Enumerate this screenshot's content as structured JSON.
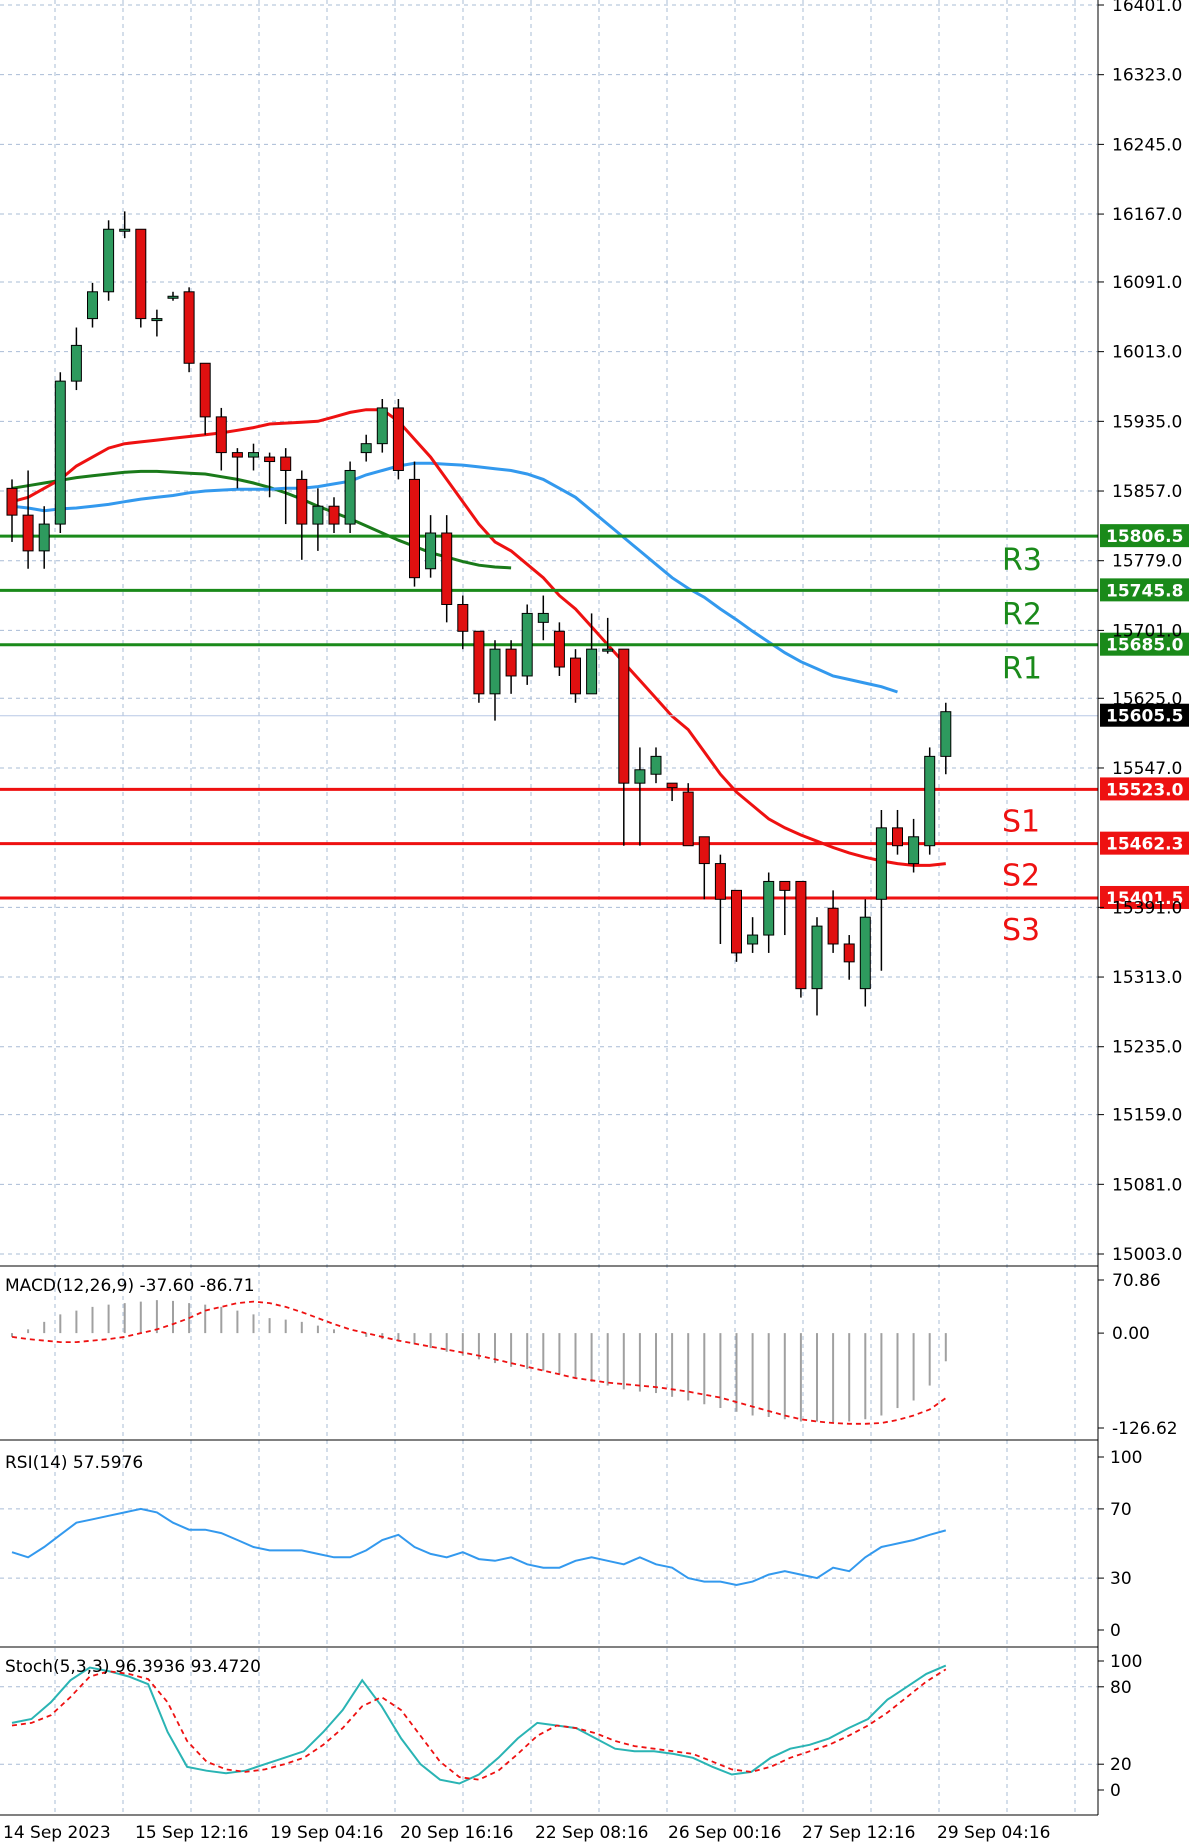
{
  "colors": {
    "bull": "#2e9a5e",
    "bear": "#e01010",
    "wick": "#000000",
    "grid": "#a9bcd6",
    "ma_fast": "#ee1111",
    "ma_mid": "#3399ee",
    "ma_slow": "#1a7a1a",
    "resistance": "#1a8a1a",
    "support": "#ee1111",
    "current": "#b8c8e6",
    "indicator_line": "#3399ee",
    "stoch_signal": "#ee1111",
    "stoch_main": "#2ab4b4",
    "macd_hist": "#a0a0a0"
  },
  "chart_data": [
    {
      "type": "candlestick",
      "ylim": [
        15003.0,
        16401.0
      ],
      "y_ticks": [
        "16401.0",
        "16323.0",
        "16245.0",
        "16167.0",
        "16091.0",
        "16013.0",
        "15935.0",
        "15857.0",
        "15779.0",
        "15701.0",
        "15625.0",
        "15547.0",
        "15391.0",
        "15313.0",
        "15235.0",
        "15159.0",
        "15081.0",
        "15003.0"
      ],
      "x_ticks": [
        "14 Sep 2023",
        "15 Sep 12:16",
        "19 Sep 04:16",
        "20 Sep 16:16",
        "22 Sep 08:16",
        "26 Sep 00:16",
        "27 Sep 12:16",
        "29 Sep 04:16"
      ],
      "candles": [
        [
          15860,
          15830,
          15870,
          15800
        ],
        [
          15830,
          15790,
          15880,
          15770
        ],
        [
          15790,
          15820,
          15840,
          15770
        ],
        [
          15820,
          15980,
          15990,
          15810
        ],
        [
          15980,
          16020,
          16040,
          15970
        ],
        [
          16050,
          16080,
          16090,
          16040
        ],
        [
          16080,
          16150,
          16160,
          16070
        ],
        [
          16150,
          16150,
          16170,
          16140
        ],
        [
          16150,
          16050,
          16150,
          16040
        ],
        [
          16050,
          16050,
          16060,
          16030
        ],
        [
          16075,
          16075,
          16080,
          16070
        ],
        [
          16080,
          16000,
          16085,
          15990
        ],
        [
          16000,
          15940,
          16000,
          15920
        ],
        [
          15940,
          15900,
          15950,
          15880
        ],
        [
          15900,
          15895,
          15905,
          15860
        ],
        [
          15895,
          15900,
          15910,
          15880
        ],
        [
          15895,
          15890,
          15900,
          15850
        ],
        [
          15895,
          15880,
          15905,
          15820
        ],
        [
          15870,
          15820,
          15880,
          15780
        ],
        [
          15820,
          15840,
          15860,
          15790
        ],
        [
          15840,
          15820,
          15850,
          15810
        ],
        [
          15820,
          15880,
          15890,
          15810
        ],
        [
          15900,
          15910,
          15920,
          15890
        ],
        [
          15910,
          15950,
          15960,
          15900
        ],
        [
          15950,
          15880,
          15960,
          15870
        ],
        [
          15870,
          15760,
          15890,
          15750
        ],
        [
          15770,
          15810,
          15830,
          15760
        ],
        [
          15810,
          15730,
          15830,
          15710
        ],
        [
          15730,
          15700,
          15740,
          15680
        ],
        [
          15700,
          15630,
          15700,
          15620
        ],
        [
          15630,
          15680,
          15690,
          15600
        ],
        [
          15680,
          15650,
          15690,
          15630
        ],
        [
          15650,
          15720,
          15730,
          15640
        ],
        [
          15710,
          15720,
          15740,
          15690
        ],
        [
          15700,
          15660,
          15710,
          15650
        ],
        [
          15670,
          15630,
          15680,
          15620
        ],
        [
          15630,
          15680,
          15720,
          15630
        ],
        [
          15680,
          15680,
          15715,
          15675
        ],
        [
          15680,
          15530,
          15680,
          15460
        ],
        [
          15530,
          15545,
          15570,
          15460
        ],
        [
          15540,
          15560,
          15570,
          15530
        ],
        [
          15530,
          15525,
          15530,
          15510
        ],
        [
          15520,
          15460,
          15530,
          15460
        ],
        [
          15470,
          15440,
          15470,
          15400
        ],
        [
          15440,
          15400,
          15450,
          15350
        ],
        [
          15410,
          15340,
          15410,
          15330
        ],
        [
          15350,
          15360,
          15380,
          15340
        ],
        [
          15360,
          15420,
          15430,
          15340
        ],
        [
          15420,
          15410,
          15420,
          15360
        ],
        [
          15420,
          15300,
          15420,
          15290
        ],
        [
          15300,
          15370,
          15380,
          15270
        ],
        [
          15390,
          15350,
          15410,
          15340
        ],
        [
          15350,
          15330,
          15360,
          15310
        ],
        [
          15300,
          15380,
          15400,
          15280
        ],
        [
          15400,
          15480,
          15500,
          15320
        ],
        [
          15480,
          15460,
          15500,
          15450
        ],
        [
          15440,
          15470,
          15490,
          15430
        ],
        [
          15460,
          15560,
          15570,
          15450
        ],
        [
          15560,
          15610,
          15620,
          15540
        ]
      ],
      "ma_fast": [
        15845,
        15850,
        15860,
        15870,
        15885,
        15895,
        15905,
        15910,
        15912,
        15914,
        15916,
        15918,
        15920,
        15922,
        15925,
        15928,
        15932,
        15933,
        15934,
        15935,
        15940,
        15945,
        15948,
        15948,
        15935,
        15915,
        15895,
        15870,
        15845,
        15820,
        15800,
        15790,
        15775,
        15760,
        15740,
        15725,
        15705,
        15685,
        15665,
        15645,
        15625,
        15605,
        15590,
        15565,
        15540,
        15520,
        15505,
        15490,
        15480,
        15472,
        15465,
        15458,
        15452,
        15447,
        15443,
        15440,
        15438,
        15438,
        15440
      ],
      "ma_mid": [
        15840,
        15838,
        15835,
        15837,
        15838,
        15840,
        15842,
        15845,
        15848,
        15850,
        15852,
        15855,
        15857,
        15858,
        15859,
        15859,
        15859,
        15860,
        15860,
        15862,
        15865,
        15868,
        15875,
        15880,
        15885,
        15888,
        15888,
        15887,
        15886,
        15884,
        15882,
        15880,
        15876,
        15870,
        15860,
        15850,
        15835,
        15820,
        15805,
        15790,
        15775,
        15760,
        15748,
        15738,
        15725,
        15713,
        15700,
        15688,
        15676,
        15666,
        15658,
        15650,
        15646,
        15642,
        15638,
        15632
      ],
      "ma_slow": [
        15860,
        15863,
        15866,
        15869,
        15872,
        15874,
        15876,
        15878,
        15879,
        15879,
        15878,
        15877,
        15876,
        15873,
        15870,
        15866,
        15861,
        15855,
        15848,
        15840,
        15833,
        15826,
        15818,
        15810,
        15802,
        15795,
        15788,
        15783,
        15778,
        15774,
        15772,
        15771
      ],
      "levels": [
        {
          "label": "R3",
          "value": "15806.5"
        },
        {
          "label": "R2",
          "value": "15745.8"
        },
        {
          "label": "R1",
          "value": "15685.0"
        },
        {
          "label": "",
          "value": "15605.5"
        },
        {
          "label": "S1",
          "value": "15523.0"
        },
        {
          "label": "S2",
          "value": "15462.3"
        },
        {
          "label": "S3",
          "value": "15401.5"
        }
      ]
    },
    {
      "type": "bar",
      "title": "MACD(12,26,9) -37.60 -86.71",
      "ylim": [
        -126.62,
        70.86
      ],
      "y_ticks": [
        "70.86",
        "0.00",
        "-126.62"
      ],
      "histogram": [
        -5,
        5,
        15,
        25,
        30,
        35,
        38,
        40,
        42,
        44,
        43,
        40,
        38,
        35,
        30,
        25,
        20,
        18,
        15,
        10,
        5,
        0,
        -5,
        -8,
        -10,
        -15,
        -20,
        -25,
        -30,
        -35,
        -40,
        -45,
        -48,
        -50,
        -55,
        -60,
        -65,
        -70,
        -75,
        -78,
        -80,
        -85,
        -90,
        -95,
        -100,
        -105,
        -110,
        -112,
        -115,
        -118,
        -118,
        -120,
        -118,
        -115,
        -110,
        -100,
        -90,
        -70,
        -37.6
      ],
      "signal": [
        -5,
        -8,
        -10,
        -12,
        -12,
        -10,
        -8,
        -5,
        0,
        5,
        12,
        20,
        30,
        35,
        40,
        42,
        40,
        35,
        28,
        20,
        12,
        5,
        0,
        -5,
        -10,
        -14,
        -18,
        -22,
        -26,
        -30,
        -35,
        -40,
        -45,
        -50,
        -55,
        -60,
        -63,
        -66,
        -68,
        -70,
        -72,
        -75,
        -78,
        -82,
        -86,
        -92,
        -98,
        -104,
        -110,
        -115,
        -118,
        -120,
        -121,
        -121,
        -120,
        -116,
        -110,
        -102,
        -86.71
      ]
    },
    {
      "type": "line",
      "title": "RSI(14) 57.5976",
      "ylim": [
        0,
        100
      ],
      "y_ticks": [
        "100",
        "70",
        "30",
        "0"
      ],
      "values": [
        45,
        42,
        48,
        55,
        62,
        64,
        66,
        68,
        70,
        68,
        62,
        58,
        58,
        56,
        52,
        48,
        46,
        46,
        46,
        44,
        42,
        42,
        46,
        52,
        55,
        48,
        44,
        42,
        45,
        41,
        40,
        42,
        38,
        36,
        36,
        40,
        42,
        40,
        38,
        42,
        38,
        36,
        30,
        28,
        28,
        26,
        28,
        32,
        34,
        32,
        30,
        36,
        34,
        42,
        48,
        50,
        52,
        55,
        57.6
      ]
    },
    {
      "type": "line",
      "title": "Stoch(5,3,3) 96.3936 93.4720",
      "ylim": [
        0,
        100
      ],
      "y_ticks": [
        "100",
        "80",
        "20",
        "0"
      ],
      "main": [
        52,
        55,
        68,
        85,
        95,
        92,
        88,
        82,
        45,
        18,
        15,
        13,
        15,
        20,
        25,
        30,
        45,
        62,
        85,
        65,
        40,
        20,
        8,
        5,
        12,
        25,
        40,
        52,
        50,
        48,
        40,
        32,
        30,
        30,
        28,
        25,
        18,
        12,
        14,
        25,
        32,
        35,
        40,
        48,
        55,
        70,
        80,
        90,
        96.4
      ],
      "signal": [
        50,
        52,
        58,
        72,
        88,
        92,
        90,
        86,
        68,
        38,
        22,
        16,
        14,
        16,
        20,
        25,
        35,
        48,
        65,
        72,
        62,
        42,
        22,
        10,
        8,
        15,
        28,
        42,
        50,
        48,
        44,
        38,
        34,
        32,
        30,
        28,
        22,
        16,
        14,
        18,
        25,
        30,
        35,
        42,
        50,
        60,
        72,
        84,
        93.5
      ]
    }
  ]
}
